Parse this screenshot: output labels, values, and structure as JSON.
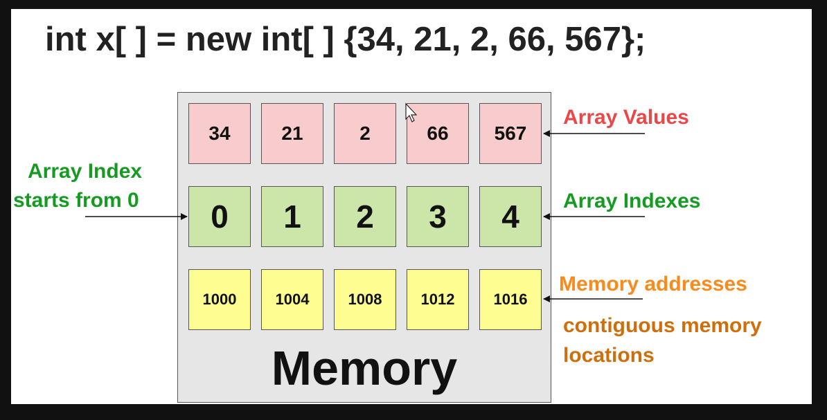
{
  "title": "int x[ ] = new int[ ] {34, 21, 2, 66, 567};",
  "values": [
    "34",
    "21",
    "2",
    "66",
    "567"
  ],
  "indexes": [
    "0",
    "1",
    "2",
    "3",
    "4"
  ],
  "addresses": [
    "1000",
    "1004",
    "1008",
    "1012",
    "1016"
  ],
  "memory_label": "Memory",
  "labels": {
    "array_values": "Array Values",
    "array_indexes": "Array Indexes",
    "memory_addresses": "Memory addresses",
    "contiguous_line1": "contiguous memory",
    "contiguous_line2": "locations",
    "index_start_line1": "Array Index",
    "index_start_line2": "starts from 0"
  },
  "colors": {
    "value_cell": "#f8cccc",
    "index_cell": "#cce5a8",
    "address_cell": "#fdfd91",
    "values_label": "#ea4848",
    "index_label": "#159b21",
    "address_label": "#fb8a1c",
    "contiguous_label": "#cf6f0b"
  }
}
